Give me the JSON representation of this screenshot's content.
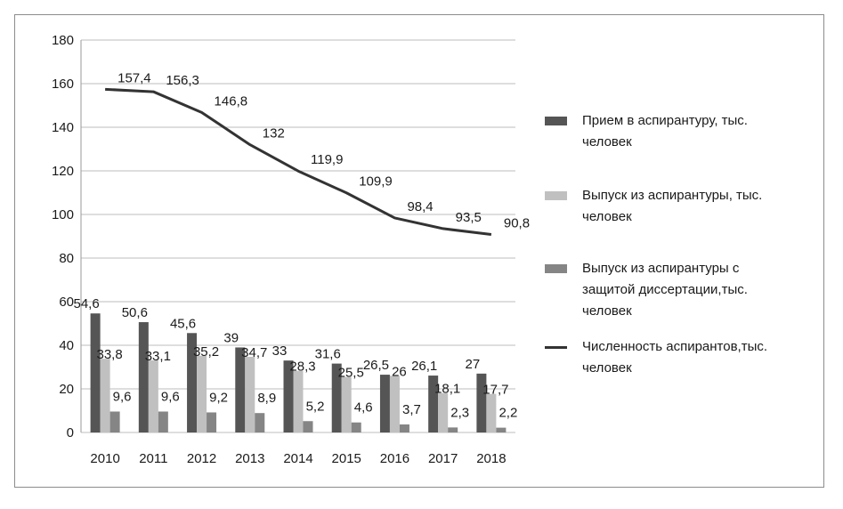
{
  "chart_data": {
    "type": "bar",
    "categories": [
      "2010",
      "2011",
      "2012",
      "2013",
      "2014",
      "2015",
      "2016",
      "2017",
      "2018"
    ],
    "ylim": [
      0,
      180
    ],
    "yticks": [
      0,
      20,
      40,
      60,
      80,
      100,
      120,
      140,
      160,
      180
    ],
    "ytick_labels": [
      "0",
      "20",
      "40",
      "60",
      "80",
      "100",
      "120",
      "140",
      "160",
      "180"
    ],
    "grid": true,
    "legend_position": "right",
    "series": [
      {
        "name": "Прием в аспирантуру, тыс. человек",
        "type": "bar",
        "color": "#555555",
        "values": [
          54.6,
          50.6,
          45.6,
          39,
          33,
          31.6,
          26.5,
          26.1,
          27
        ],
        "labels": [
          "54,6",
          "50,6",
          "45,6",
          "39",
          "33",
          "31,6",
          "26,5",
          "26,1",
          "27"
        ]
      },
      {
        "name": "Выпуск из аспирантуры, тыс. человек",
        "type": "bar",
        "color": "#c0c0c0",
        "values": [
          33.8,
          33.1,
          35.2,
          34.7,
          28.3,
          25.5,
          26,
          18.1,
          17.7
        ],
        "labels": [
          "33,8",
          "33,1",
          "35,2",
          "34,7",
          "28,3",
          "25,5",
          "26",
          "18,1",
          "17,7"
        ]
      },
      {
        "name": "Выпуск из аспирантуры с защитой диссертации,тыс. человек",
        "type": "bar",
        "color": "#858585",
        "values": [
          9.6,
          9.6,
          9.2,
          8.9,
          5.2,
          4.6,
          3.7,
          2.3,
          2.2
        ],
        "labels": [
          "9,6",
          "9,6",
          "9,2",
          "8,9",
          "5,2",
          "4,6",
          "3,7",
          "2,3",
          "2,2"
        ]
      },
      {
        "name": "Численность аспирантов,тыс. человек",
        "type": "line",
        "color": "#333333",
        "values": [
          157.4,
          156.3,
          146.8,
          132,
          119.9,
          109.9,
          98.4,
          93.5,
          90.8
        ],
        "labels": [
          "157,4",
          "156,3",
          "146,8",
          "132",
          "119,9",
          "109,9",
          "98,4",
          "93,5",
          "90,8"
        ]
      }
    ]
  },
  "legend": [
    {
      "line1": "Прием в аспирантуру, тыс.",
      "line2": "человек",
      "line3": "",
      "color": "#555555",
      "kind": "bar"
    },
    {
      "line1": "Выпуск из аспирантуры, тыс.",
      "line2": "человек",
      "line3": "",
      "color": "#c0c0c0",
      "kind": "bar"
    },
    {
      "line1": "Выпуск из аспирантуры с",
      "line2": "защитой диссертации,тыс.",
      "line3": "человек",
      "color": "#858585",
      "kind": "bar"
    },
    {
      "line1": "Численность аспирантов,тыс.",
      "line2": "человек",
      "line3": "",
      "color": "#333333",
      "kind": "line"
    }
  ]
}
